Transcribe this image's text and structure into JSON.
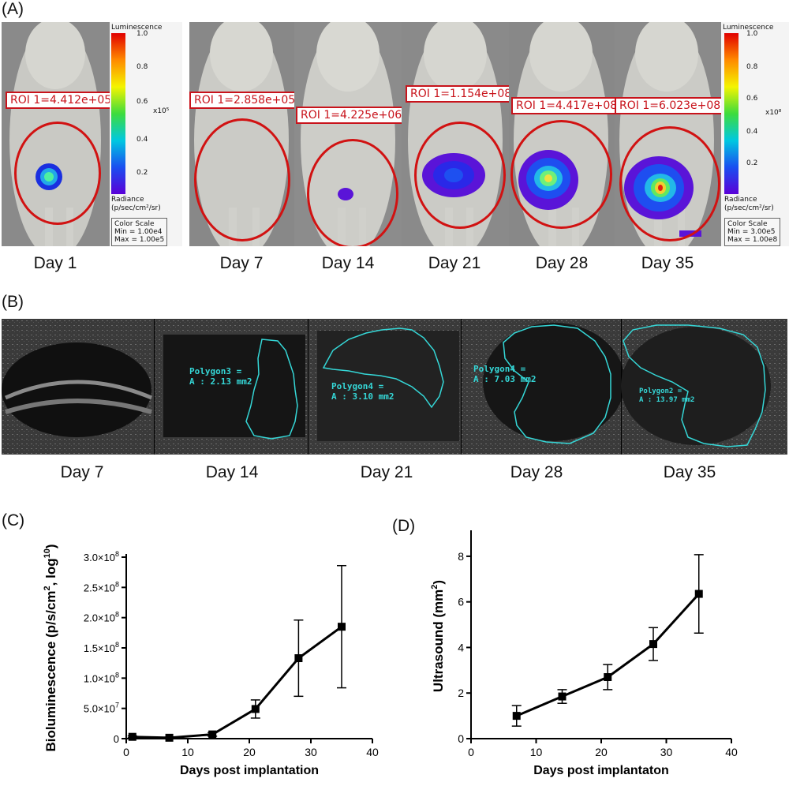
{
  "panel_a": {
    "letter": "(A)",
    "colorbar_left": {
      "title": "Luminescence",
      "top": "1.0",
      "ticks": [
        "0.8",
        "0.6",
        "0.4",
        "0.2"
      ],
      "multiplier": "x10⁵",
      "radiance": "Radiance",
      "units": "(p/sec/cm²/sr)",
      "cs_title": "Color Scale",
      "cs_min": "Min = 1.00e4",
      "cs_max": "Max = 1.00e5"
    },
    "colorbar_right": {
      "title": "Luminescence",
      "top": "1.0",
      "ticks": [
        "0.8",
        "0.6",
        "0.4",
        "0.2"
      ],
      "multiplier": "x10⁸",
      "radiance": "Radiance",
      "units": "(p/sec/cm²/sr)",
      "cs_title": "Color Scale",
      "cs_min": "Min = 3.00e5",
      "cs_max": "Max = 1.00e8"
    },
    "mice": [
      {
        "day": "Day 1",
        "roi": "ROI 1=4.412e+05"
      },
      {
        "day": "Day 7",
        "roi": "ROI 1=2.858e+05"
      },
      {
        "day": "Day 14",
        "roi": "ROI 1=4.225e+06"
      },
      {
        "day": "Day 21",
        "roi": "ROI 1=1.154e+08"
      },
      {
        "day": "Day 28",
        "roi": "ROI 1=4.417e+08"
      },
      {
        "day": "Day 35",
        "roi": "ROI 1=6.023e+08"
      }
    ]
  },
  "panel_b": {
    "letter": "(B)",
    "frames": [
      {
        "day": "Day 7",
        "poly_name": "",
        "poly_area": ""
      },
      {
        "day": "Day 14",
        "poly_name": "Polygon3 =",
        "poly_area": "A : 2.13 mm2"
      },
      {
        "day": "Day 21",
        "poly_name": "Polygon4 =",
        "poly_area": "A : 3.10 mm2"
      },
      {
        "day": "Day 28",
        "poly_name": "Polygon4 =",
        "poly_area": "A : 7.03 mm2"
      },
      {
        "day": "Day 35",
        "poly_name": "Polygon2 =",
        "poly_area": "A : 13.97 mm2"
      }
    ]
  },
  "panel_c": {
    "letter": "(C)"
  },
  "panel_d": {
    "letter": "(D)"
  },
  "chart_data": [
    {
      "type": "line",
      "panel": "C",
      "title": "",
      "xlabel": "Days post implantation",
      "ylabel_main": "Bioluminescence (p/s/cm",
      "ylabel_sup1": "2",
      "ylabel_mid": ", log",
      "ylabel_sup2": "10",
      "ylabel_end": ")",
      "xlim": [
        0,
        40
      ],
      "ylim": [
        0,
        300000000
      ],
      "x_ticks": [
        0,
        10,
        20,
        30,
        40
      ],
      "x_tick_labels": [
        "0",
        "10",
        "20",
        "30",
        "40"
      ],
      "y_ticks": [
        0,
        50000000,
        100000000,
        150000000,
        200000000,
        250000000,
        300000000
      ],
      "y_tick_labels": [
        {
          "m": "0",
          "e": ""
        },
        {
          "m": "5.0×10",
          "e": "7"
        },
        {
          "m": "1.0×10",
          "e": "8"
        },
        {
          "m": "1.5×10",
          "e": "8"
        },
        {
          "m": "2.0×10",
          "e": "8"
        },
        {
          "m": "2.5×10",
          "e": "8"
        },
        {
          "m": "3.0×10",
          "e": "8"
        }
      ],
      "series": [
        {
          "name": "Bioluminescence",
          "x": [
            1,
            7,
            14,
            21,
            28,
            35
          ],
          "y": [
            3000000,
            1500000,
            7000000,
            49000000,
            133000000,
            185000000
          ],
          "err": [
            1500000,
            1000000,
            3000000,
            15000000,
            63000000,
            101000000
          ]
        }
      ],
      "marker": "square",
      "grid": false
    },
    {
      "type": "line",
      "panel": "D",
      "title": "",
      "xlabel": "Days post implantaton",
      "ylabel_main": "Ultrasound (mm",
      "ylabel_sup1": "2",
      "ylabel_end": ")",
      "xlim": [
        0,
        40
      ],
      "ylim": [
        0,
        9
      ],
      "x_ticks": [
        0,
        10,
        20,
        30,
        40
      ],
      "x_tick_labels": [
        "0",
        "10",
        "20",
        "30",
        "40"
      ],
      "y_ticks": [
        0,
        2,
        4,
        6,
        8
      ],
      "y_tick_labels": [
        "0",
        "2",
        "4",
        "6",
        "8"
      ],
      "series": [
        {
          "name": "Ultrasound",
          "x": [
            7,
            14,
            21,
            28,
            35
          ],
          "y": [
            1.0,
            1.85,
            2.7,
            4.15,
            6.35
          ],
          "err": [
            0.45,
            0.3,
            0.55,
            0.72,
            1.72
          ]
        }
      ],
      "marker": "square",
      "grid": false
    }
  ],
  "colors": {
    "roi_red": "#c8131b",
    "polygon_cyan": "#35d7d7",
    "axis": "#000000"
  }
}
